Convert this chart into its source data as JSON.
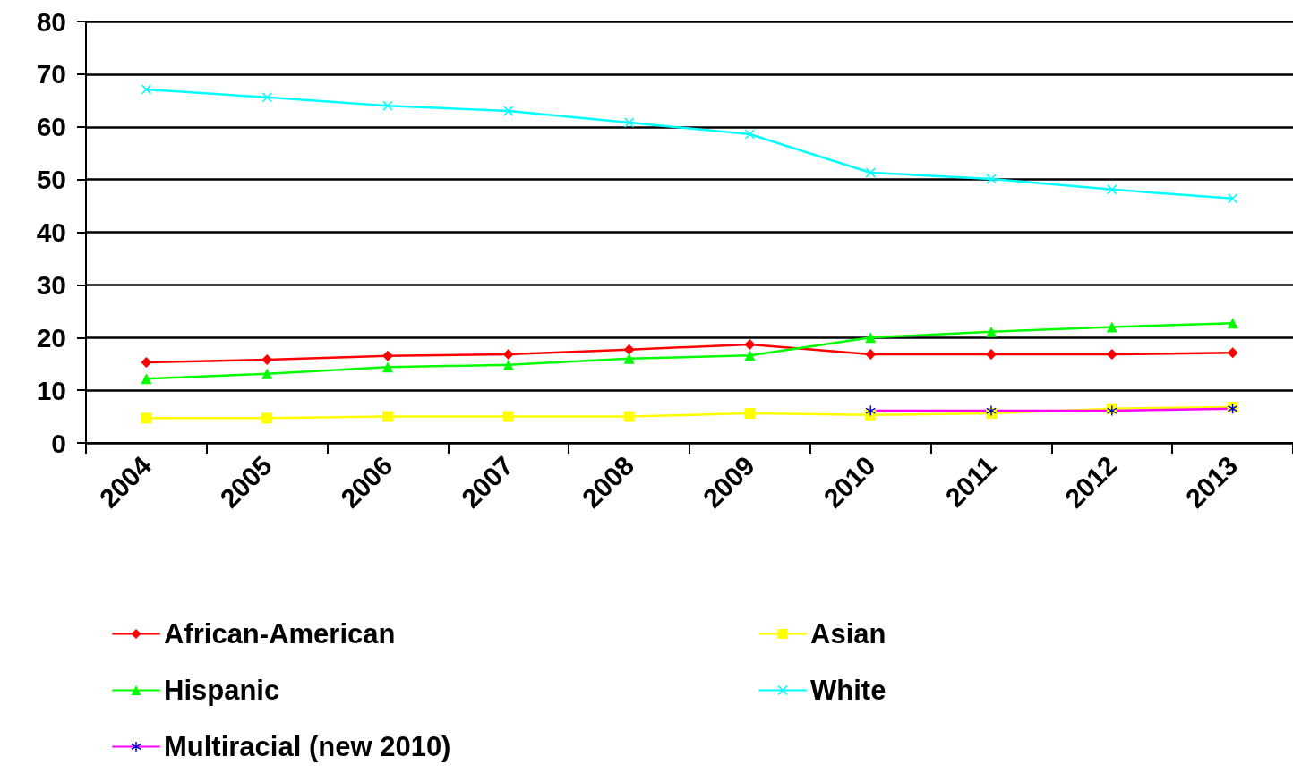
{
  "chart_data": {
    "type": "line",
    "categories": [
      "2004",
      "2005",
      "2006",
      "2007",
      "2008",
      "2009",
      "2010",
      "2011",
      "2012",
      "2013"
    ],
    "series": [
      {
        "name": "African-American",
        "color": "#ff0000",
        "marker": "diamond",
        "values": [
          15.3,
          15.8,
          16.5,
          16.8,
          17.7,
          18.7,
          16.8,
          16.8,
          16.8,
          17.1
        ]
      },
      {
        "name": "Asian",
        "color": "#ffff00",
        "marker": "square",
        "values": [
          4.7,
          4.7,
          5.0,
          5.0,
          5.0,
          5.6,
          5.3,
          5.6,
          6.5,
          6.8
        ]
      },
      {
        "name": "Hispanic",
        "color": "#00ff00",
        "marker": "triangle",
        "values": [
          12.2,
          13.1,
          14.4,
          14.8,
          16.0,
          16.6,
          20.0,
          21.1,
          22.0,
          22.7
        ]
      },
      {
        "name": "White",
        "color": "#00ffff",
        "marker": "cross",
        "values": [
          67.1,
          65.6,
          64.0,
          63.0,
          60.8,
          58.6,
          51.3,
          50.1,
          48.1,
          46.4
        ]
      },
      {
        "name": "Multiracial (new 2010)",
        "color": "#ff00ff",
        "marker": "star",
        "values": [
          null,
          null,
          null,
          null,
          null,
          null,
          6.1,
          6.1,
          6.1,
          6.5
        ]
      }
    ],
    "ylim": [
      0,
      80
    ],
    "yticks": [
      0,
      10,
      20,
      30,
      40,
      50,
      60,
      70,
      80
    ],
    "grid": "y",
    "legend": "bottom",
    "line_style": "solid"
  }
}
